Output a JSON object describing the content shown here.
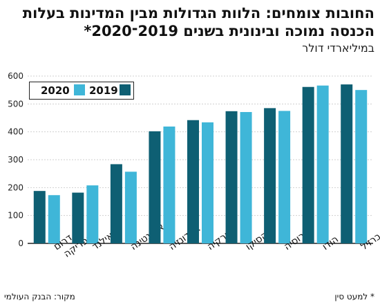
{
  "chart_data": {
    "type": "bar",
    "title": "החובות צומחים: הלוות הגדולות מבין המדינות בעלות הכנסה נמוכה ובינונית בשנים 2019־2020*",
    "subtitle": "במיליארדי דולר",
    "categories": [
      "דרום אפריקה",
      "תאילנד",
      "ארגנטינה",
      "אינדונזיה",
      "טורקיה",
      "מקסיקו",
      "רוסיה",
      "הודו",
      "ברזיל"
    ],
    "series": [
      {
        "name": "2019",
        "color": "#0e5f73",
        "values": [
          188,
          182,
          284,
          402,
          442,
          474,
          485,
          561,
          570
        ]
      },
      {
        "name": "2020",
        "color": "#3fb6d8",
        "values": [
          173,
          208,
          257,
          419,
          434,
          471,
          475,
          566,
          550
        ]
      }
    ],
    "yticks": [
      0,
      100,
      200,
      300,
      400,
      500,
      600
    ],
    "ylim": [
      0,
      600
    ],
    "grid": true,
    "legend": "top-left"
  },
  "footer": {
    "source": "מקור: הבנק העולמי",
    "note": "* למעט סין"
  }
}
